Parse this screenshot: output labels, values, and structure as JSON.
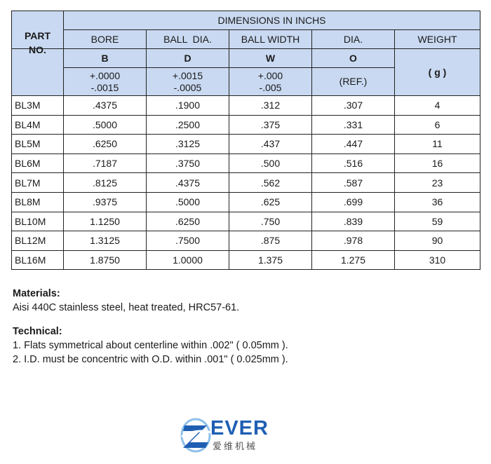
{
  "table": {
    "part_no_label": "PART\nNO.",
    "part_no_line1": "PART",
    "part_no_line2": "NO.",
    "group_title": "DIMENSIONS IN INCHS",
    "columns": [
      {
        "name": "BORE",
        "letter": "B",
        "tol_top": "+.0000",
        "tol_bottom": "-.0015"
      },
      {
        "name": "BALL  DIA.",
        "letter": "D",
        "tol_top": "+.0015",
        "tol_bottom": "-.0005"
      },
      {
        "name": "BALL WIDTH",
        "letter": "W",
        "tol_top": "+.000",
        "tol_bottom": "-.005"
      },
      {
        "name": "DIA.",
        "letter": "O",
        "tol_top": "(REF.)",
        "tol_bottom": ""
      }
    ],
    "weight_label": "WEIGHT",
    "weight_unit": "( g )",
    "rows": [
      [
        "BL3M",
        ".4375",
        ".1900",
        ".312",
        ".307",
        "4"
      ],
      [
        "BL4M",
        ".5000",
        ".2500",
        ".375",
        ".331",
        "6"
      ],
      [
        "BL5M",
        ".6250",
        ".3125",
        ".437",
        ".447",
        "11"
      ],
      [
        "BL6M",
        ".7187",
        ".3750",
        ".500",
        ".516",
        "16"
      ],
      [
        "BL7M",
        ".8125",
        ".4375",
        ".562",
        ".587",
        "23"
      ],
      [
        "BL8M",
        ".9375",
        ".5000",
        ".625",
        ".699",
        "36"
      ],
      [
        "BL10M",
        "1.1250",
        ".6250",
        ".750",
        ".839",
        "59"
      ],
      [
        "BL12M",
        "1.3125",
        ".7500",
        ".875",
        ".978",
        "90"
      ],
      [
        "BL16M",
        "1.8750",
        "1.0000",
        "1.375",
        "1.275",
        "310"
      ]
    ]
  },
  "materials": {
    "heading": "Materials:",
    "text": "Aisi 440C stainless steel, heat treated, HRC57-61."
  },
  "technical": {
    "heading": "Technical:",
    "items": [
      "1. Flats symmetrical about centerline within .002\" ( 0.05mm ).",
      "2. I.D. must be concentric with O.D. within .001\" ( 0.025mm )."
    ]
  },
  "logo": {
    "brand": "EVER",
    "chinese": "爱维机械",
    "primary_color": "#1f5fb3",
    "secondary_color": "#8fc0ea"
  },
  "colors": {
    "header_fill": "#c9d9f1"
  }
}
